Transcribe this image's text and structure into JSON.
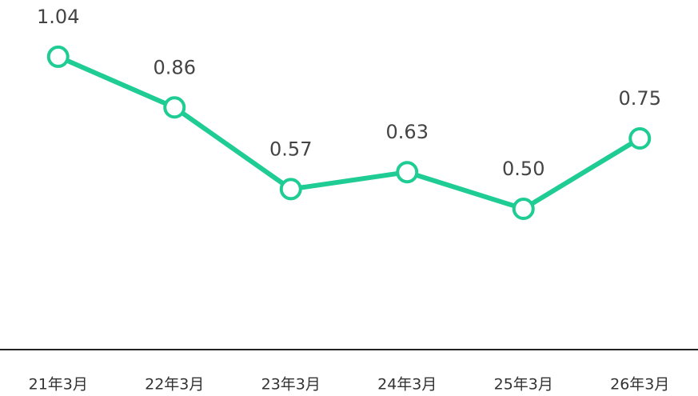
{
  "chart_data": {
    "type": "line",
    "categories": [
      "21年3月",
      "22年3月",
      "23年3月",
      "24年3月",
      "25年3月",
      "26年3月"
    ],
    "series": [
      {
        "color": "#1fcc93",
        "values": [
          1.04,
          0.86,
          0.57,
          0.63,
          0.5,
          0.75
        ],
        "value_labels": [
          "1.04",
          "0.86",
          "0.57",
          "0.63",
          "0.50",
          "0.75"
        ]
      }
    ],
    "ylim": [
      0,
      1.2
    ]
  }
}
